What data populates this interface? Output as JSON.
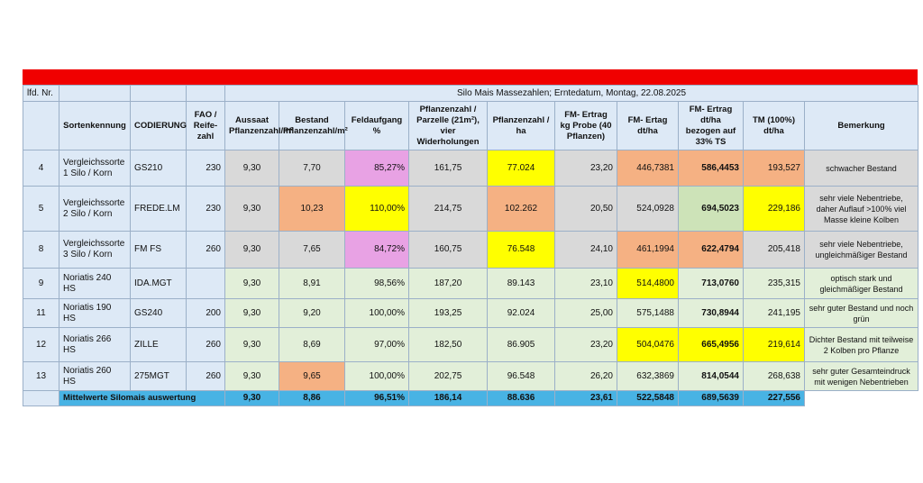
{
  "table": {
    "col_lfd": "lfd. Nr.",
    "title": "Silo Mais Massezahlen; Erntedatum, Montag, 22.08.2025",
    "headers": [
      "Sortenkennung",
      "CODIERUNG",
      "FAO / Reife-zahl",
      "Aussaat Pflanzenzahl/m²",
      "Bestand Pflanzenzahl/m²",
      "Feldaufgang %",
      "Pflanzenzahl / Parzelle (21m²), vier Widerholungen",
      "Pflanzenzahl / ha",
      "FM- Ertrag kg Probe (40 Pflanzen)",
      "FM- Ertag dt/ha",
      "FM- Ertrag dt/ha bezogen auf 33% TS",
      "TM (100%) dt/ha",
      "Bemerkung"
    ],
    "rows": [
      {
        "nr": "4",
        "sorte": "Vergleichssorte 1 Silo / Korn",
        "code": "GS210",
        "fao": "230",
        "aussaat": "9,30",
        "bestand": "7,70",
        "feld": "85,27%",
        "parz": "161,75",
        "ha": "77.024",
        "fm_kg": "23,20",
        "fm_dt": "446,7381",
        "fm33": "586,4453",
        "tm": "193,527",
        "bem": "schwacher Bestand"
      },
      {
        "nr": "5",
        "sorte": "Vergleichssorte 2 Silo / Korn",
        "code": "FREDE.LM",
        "fao": "230",
        "aussaat": "9,30",
        "bestand": "10,23",
        "feld": "110,00%",
        "parz": "214,75",
        "ha": "102.262",
        "fm_kg": "20,50",
        "fm_dt": "524,0928",
        "fm33": "694,5023",
        "tm": "229,186",
        "bem": "sehr viele Nebentriebe, daher Auflauf >100% viel Masse kleine Kolben"
      },
      {
        "nr": "8",
        "sorte": "Vergleichssorte 3 Silo / Korn",
        "code": "FM FS",
        "fao": "260",
        "aussaat": "9,30",
        "bestand": "7,65",
        "feld": "84,72%",
        "parz": "160,75",
        "ha": "76.548",
        "fm_kg": "24,10",
        "fm_dt": "461,1994",
        "fm33": "622,4794",
        "tm": "205,418",
        "bem": "sehr viele Nebentriebe, ungleichmäßiger Bestand"
      },
      {
        "nr": "9",
        "sorte": "Noriatis 240 HS",
        "code": "IDA.MGT",
        "fao": "",
        "aussaat": "9,30",
        "bestand": "8,91",
        "feld": "98,56%",
        "parz": "187,20",
        "ha": "89.143",
        "fm_kg": "23,10",
        "fm_dt": "514,4800",
        "fm33": "713,0760",
        "tm": "235,315",
        "bem": "optisch stark und gleichmäßiger Bestand"
      },
      {
        "nr": "11",
        "sorte": "Noriatis 190 HS",
        "code": "GS240",
        "fao": "200",
        "aussaat": "9,30",
        "bestand": "9,20",
        "feld": "100,00%",
        "parz": "193,25",
        "ha": "92.024",
        "fm_kg": "25,00",
        "fm_dt": "575,1488",
        "fm33": "730,8944",
        "tm": "241,195",
        "bem": "sehr guter Bestand und noch grün"
      },
      {
        "nr": "12",
        "sorte": "Noriatis 266 HS",
        "code": "ZILLE",
        "fao": "260",
        "aussaat": "9,30",
        "bestand": "8,69",
        "feld": "97,00%",
        "parz": "182,50",
        "ha": "86.905",
        "fm_kg": "23,20",
        "fm_dt": "504,0476",
        "fm33": "665,4956",
        "tm": "219,614",
        "bem": "Dichter Bestand mit teilweise 2 Kolben pro Pflanze"
      },
      {
        "nr": "13",
        "sorte": "Noriatis 260 HS",
        "code": "275MGT",
        "fao": "260",
        "aussaat": "9,30",
        "bestand": "9,65",
        "feld": "100,00%",
        "parz": "202,75",
        "ha": "96.548",
        "fm_kg": "26,20",
        "fm_dt": "632,3869",
        "fm33": "814,0544",
        "tm": "268,638",
        "bem": "sehr guter Gesamteindruck mit wenigen Nebentrieben"
      }
    ],
    "total": {
      "label": "Mittelwerte Silomais auswertung",
      "aussaat": "9,30",
      "bestand": "8,86",
      "feld": "96,51%",
      "parz": "186,14",
      "ha": "88.636",
      "fm_kg": "23,61",
      "fm_dt": "522,5848",
      "fm33": "689,5639",
      "tm": "227,556"
    }
  },
  "colors": {
    "header_bar": "#f00000",
    "highlight_yellow": "#ffff00",
    "highlight_salmon": "#f5b183",
    "highlight_pink": "#e8a2e4",
    "total_row": "#48b3e4"
  }
}
